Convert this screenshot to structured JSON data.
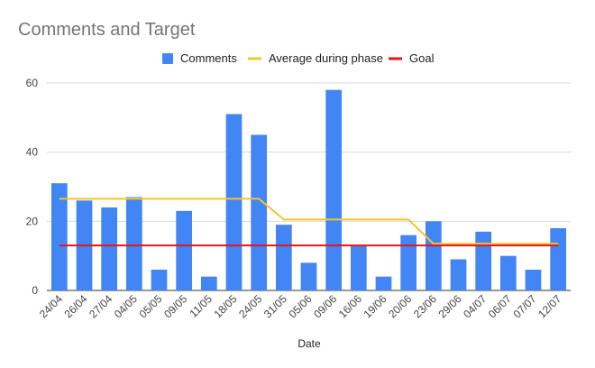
{
  "chart_data": {
    "type": "bar",
    "title": "Comments and Target",
    "xlabel": "Date",
    "ylabel": "",
    "ylim": [
      0,
      60
    ],
    "yticks": [
      0,
      20,
      40,
      60
    ],
    "grid": true,
    "legend_position": "top",
    "categories": [
      "24/04",
      "26/04",
      "27/04",
      "04/05",
      "05/05",
      "09/05",
      "11/05",
      "18/05",
      "24/05",
      "31/05",
      "05/06",
      "09/06",
      "16/06",
      "19/06",
      "20/06",
      "23/06",
      "29/06",
      "04/07",
      "06/07",
      "07/07",
      "12/07"
    ],
    "series": [
      {
        "name": "Comments",
        "type": "bar",
        "color": "#4285f4",
        "values": [
          31,
          26,
          24,
          27,
          6,
          23,
          4,
          51,
          45,
          19,
          8,
          58,
          13,
          4,
          16,
          20,
          9,
          17,
          10,
          6,
          18
        ]
      },
      {
        "name": "Average during phase",
        "type": "line",
        "color": "#f4c430",
        "values": [
          26.5,
          26.5,
          26.5,
          26.5,
          26.5,
          26.5,
          26.5,
          26.5,
          26.5,
          20.5,
          20.5,
          20.5,
          20.5,
          20.5,
          20.5,
          13.5,
          13.5,
          13.5,
          13.5,
          13.5,
          13.5
        ]
      },
      {
        "name": "Goal",
        "type": "line",
        "color": "#e8141c",
        "values": [
          13,
          13,
          13,
          13,
          13,
          13,
          13,
          13,
          13,
          13,
          13,
          13,
          13,
          13,
          13,
          13,
          13,
          13,
          13,
          13,
          13
        ]
      }
    ]
  }
}
